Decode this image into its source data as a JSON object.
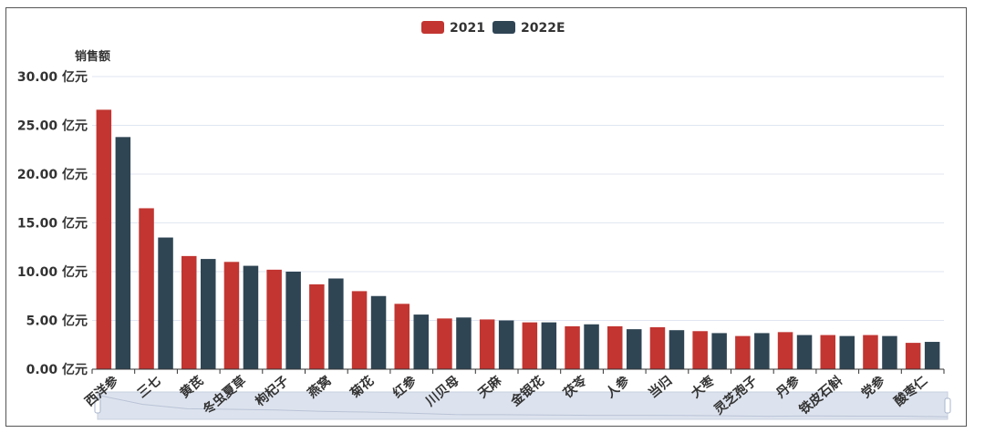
{
  "chart_data": {
    "type": "bar",
    "title": "",
    "ylabel": "销售额",
    "yunit": "亿元",
    "ylim": [
      0,
      30
    ],
    "yticks": [
      "0.00 亿元",
      "5.00 亿元",
      "10.00 亿元",
      "15.00 亿元",
      "20.00 亿元",
      "25.00 亿元",
      "30.00 亿元"
    ],
    "legend_position": "top-center",
    "grid": true,
    "categories": [
      "西洋参",
      "三七",
      "黄芪",
      "冬虫夏草",
      "枸杞子",
      "燕窝",
      "菊花",
      "红参",
      "川贝母",
      "天麻",
      "金银花",
      "茯苓",
      "人参",
      "当归",
      "大枣",
      "灵芝孢子",
      "丹参",
      "铁皮石斛",
      "党参",
      "酸枣仁"
    ],
    "series": [
      {
        "name": "2021",
        "color": "#c23531",
        "values": [
          26.6,
          16.5,
          11.6,
          11.0,
          10.2,
          8.7,
          8.0,
          6.7,
          5.2,
          5.1,
          4.8,
          4.4,
          4.4,
          4.3,
          3.9,
          3.4,
          3.8,
          3.5,
          3.5,
          2.7
        ]
      },
      {
        "name": "2022E",
        "color": "#2f4554",
        "values": [
          23.8,
          13.5,
          11.3,
          10.6,
          10.0,
          9.3,
          7.5,
          5.6,
          5.3,
          5.0,
          4.8,
          4.6,
          4.1,
          4.0,
          3.7,
          3.7,
          3.5,
          3.4,
          3.4,
          2.8
        ]
      }
    ]
  },
  "datazoom": {
    "start": 0,
    "end": 100
  }
}
